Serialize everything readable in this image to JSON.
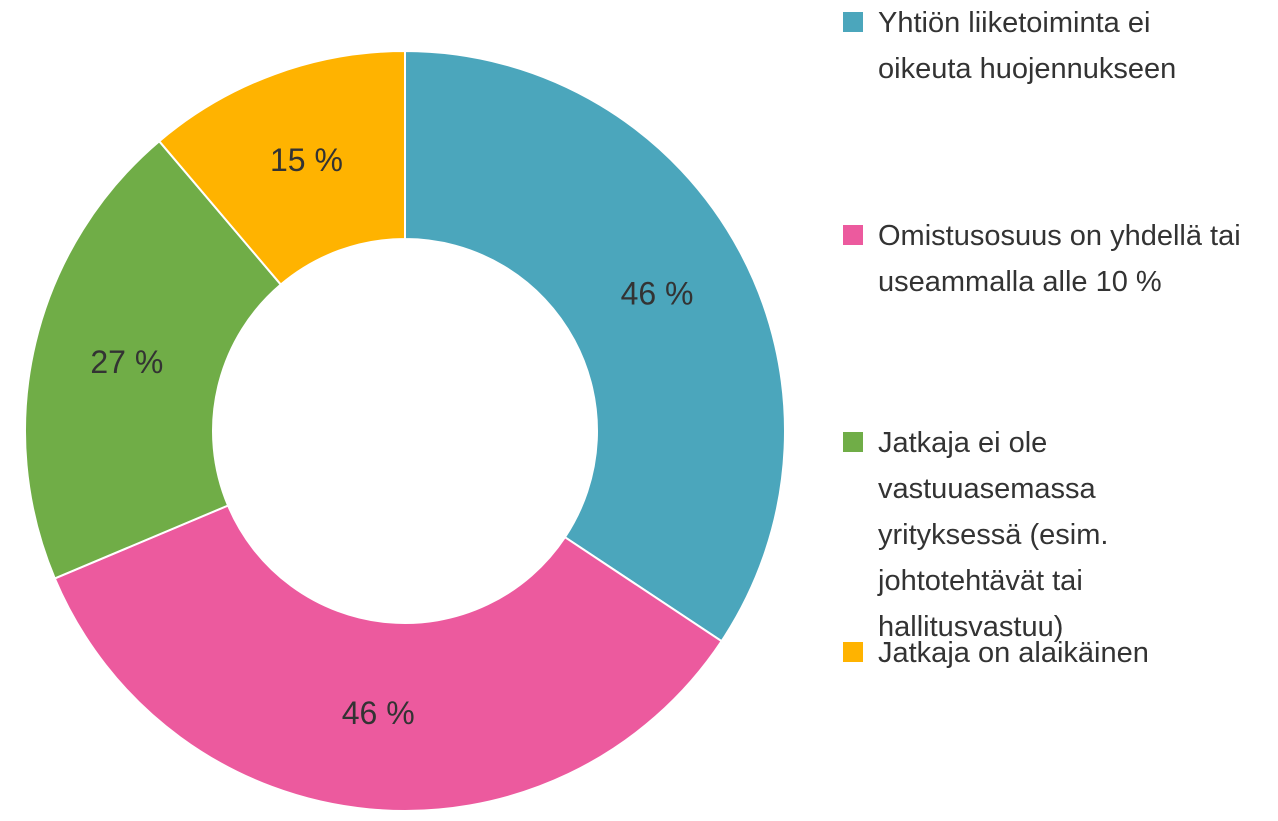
{
  "chart_data": {
    "type": "donut",
    "categories": [
      "Yhtiön liiketoiminta ei oikeuta huojennukseen",
      "Omistusosuus on yhdellä tai useammalla alle 10 %",
      "Jatkaja ei ole vastuuasemassa yrityksessä (esim. johtotehtävät tai hallitusvastuu)",
      "Jatkaja on alaikäinen"
    ],
    "values": [
      46,
      46,
      27,
      15
    ],
    "value_labels": [
      "46 %",
      "46 %",
      "27 %",
      "15 %"
    ],
    "colors": [
      "#4ba6bc",
      "#ec5a9e",
      "#70ad47",
      "#ffb300"
    ],
    "legend": "right"
  }
}
